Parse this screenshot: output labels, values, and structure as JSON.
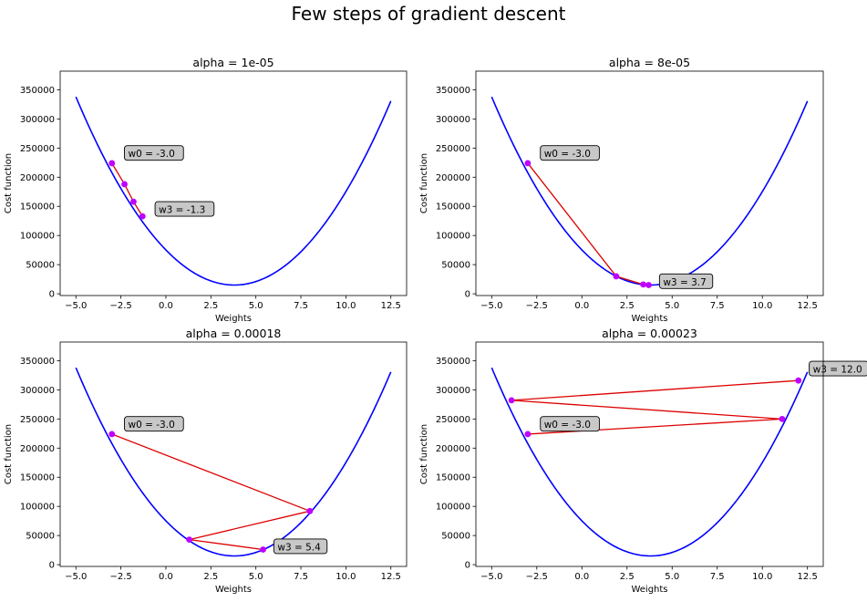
{
  "title": "Few steps of gradient descent",
  "colors": {
    "curve": "#0000ff",
    "path": "#dd0000",
    "points": "#bf00ff",
    "annotation_fill": "#c8c8c8"
  },
  "chart_data": [
    {
      "type": "line",
      "title": "alpha = 1e-05",
      "xlabel": "Weights",
      "ylabel": "Cost function",
      "xlim": [
        -5.875,
        13.375
      ],
      "ylim": [
        -3000,
        382000
      ],
      "xticks": [
        -5.0,
        -2.5,
        0.0,
        2.5,
        5.0,
        7.5,
        10.0,
        12.5
      ],
      "xtick_labels": [
        "−5.0",
        "−2.5",
        "0.0",
        "2.5",
        "5.0",
        "7.5",
        "10.0",
        "12.5"
      ],
      "yticks": [
        0,
        50000,
        100000,
        150000,
        200000,
        250000,
        300000,
        350000
      ],
      "ytick_labels": [
        "0",
        "50000",
        "100000",
        "150000",
        "200000",
        "250000",
        "300000",
        "350000"
      ],
      "curve": {
        "x_min": -5.0,
        "x_max": 12.5,
        "vertex_x": 3.8,
        "vertex_y": 15000,
        "a": 4170
      },
      "steps": {
        "x": [
          -3.0,
          -2.3,
          -1.8,
          -1.3
        ],
        "y": [
          224000,
          188000,
          158000,
          133000
        ]
      },
      "annotations": [
        {
          "text": "w0 = -3.0",
          "x": -3.0,
          "y": 224000,
          "tx": -2.1,
          "ty": 240000
        },
        {
          "text": "w3 = -1.3",
          "x": -1.3,
          "y": 133000,
          "tx": -0.4,
          "ty": 144000
        }
      ]
    },
    {
      "type": "line",
      "title": "alpha = 8e-05",
      "xlabel": "Weights",
      "ylabel": "Cost function",
      "xlim": [
        -5.875,
        13.375
      ],
      "ylim": [
        -3000,
        382000
      ],
      "xticks": [
        -5.0,
        -2.5,
        0.0,
        2.5,
        5.0,
        7.5,
        10.0,
        12.5
      ],
      "xtick_labels": [
        "−5.0",
        "−2.5",
        "0.0",
        "2.5",
        "5.0",
        "7.5",
        "10.0",
        "12.5"
      ],
      "yticks": [
        0,
        50000,
        100000,
        150000,
        200000,
        250000,
        300000,
        350000
      ],
      "ytick_labels": [
        "0",
        "50000",
        "100000",
        "150000",
        "200000",
        "250000",
        "300000",
        "350000"
      ],
      "curve": {
        "x_min": -5.0,
        "x_max": 12.5,
        "vertex_x": 3.8,
        "vertex_y": 15000,
        "a": 4170
      },
      "steps": {
        "x": [
          -3.0,
          1.9,
          3.4,
          3.7
        ],
        "y": [
          224000,
          30000,
          16000,
          15000
        ]
      },
      "annotations": [
        {
          "text": "w0 = -3.0",
          "x": -3.0,
          "y": 224000,
          "tx": -2.1,
          "ty": 240000
        },
        {
          "text": "w3 = 3.7",
          "x": 3.7,
          "y": 15000,
          "tx": 4.5,
          "ty": 20000
        }
      ]
    },
    {
      "type": "line",
      "title": "alpha = 0.00018",
      "xlabel": "Weights",
      "ylabel": "Cost function",
      "xlim": [
        -5.875,
        13.375
      ],
      "ylim": [
        -3000,
        382000
      ],
      "xticks": [
        -5.0,
        -2.5,
        0.0,
        2.5,
        5.0,
        7.5,
        10.0,
        12.5
      ],
      "xtick_labels": [
        "−5.0",
        "−2.5",
        "0.0",
        "2.5",
        "5.0",
        "7.5",
        "10.0",
        "12.5"
      ],
      "yticks": [
        0,
        50000,
        100000,
        150000,
        200000,
        250000,
        300000,
        350000
      ],
      "ytick_labels": [
        "0",
        "50000",
        "100000",
        "150000",
        "200000",
        "250000",
        "300000",
        "350000"
      ],
      "curve": {
        "x_min": -5.0,
        "x_max": 12.5,
        "vertex_x": 3.8,
        "vertex_y": 15000,
        "a": 4170
      },
      "steps": {
        "x": [
          -3.0,
          8.0,
          1.3,
          5.4
        ],
        "y": [
          224000,
          92000,
          43000,
          26000
        ]
      },
      "annotations": [
        {
          "text": "w0 = -3.0",
          "x": -3.0,
          "y": 224000,
          "tx": -2.1,
          "ty": 240000
        },
        {
          "text": "w3 = 5.4",
          "x": 5.4,
          "y": 26000,
          "tx": 6.2,
          "ty": 30000
        }
      ]
    },
    {
      "type": "line",
      "title": "alpha = 0.00023",
      "xlabel": "Weights",
      "ylabel": "Cost function",
      "xlim": [
        -5.875,
        13.375
      ],
      "ylim": [
        -3000,
        382000
      ],
      "xticks": [
        -5.0,
        -2.5,
        0.0,
        2.5,
        5.0,
        7.5,
        10.0,
        12.5
      ],
      "xtick_labels": [
        "−5.0",
        "−2.5",
        "0.0",
        "2.5",
        "5.0",
        "7.5",
        "10.0",
        "12.5"
      ],
      "yticks": [
        0,
        50000,
        100000,
        150000,
        200000,
        250000,
        300000,
        350000
      ],
      "ytick_labels": [
        "0",
        "50000",
        "100000",
        "150000",
        "200000",
        "250000",
        "300000",
        "350000"
      ],
      "curve": {
        "x_min": -5.0,
        "x_max": 12.5,
        "vertex_x": 3.8,
        "vertex_y": 15000,
        "a": 4170
      },
      "steps": {
        "x": [
          -3.0,
          11.1,
          -3.9,
          12.0
        ],
        "y": [
          224000,
          250000,
          282000,
          316000
        ]
      },
      "annotations": [
        {
          "text": "w0 = -3.0",
          "x": -3.0,
          "y": 224000,
          "tx": -2.1,
          "ty": 240000
        },
        {
          "text": "w3 = 12.0",
          "x": 12.0,
          "y": 316000,
          "tx": 12.8,
          "ty": 335000
        }
      ]
    }
  ]
}
